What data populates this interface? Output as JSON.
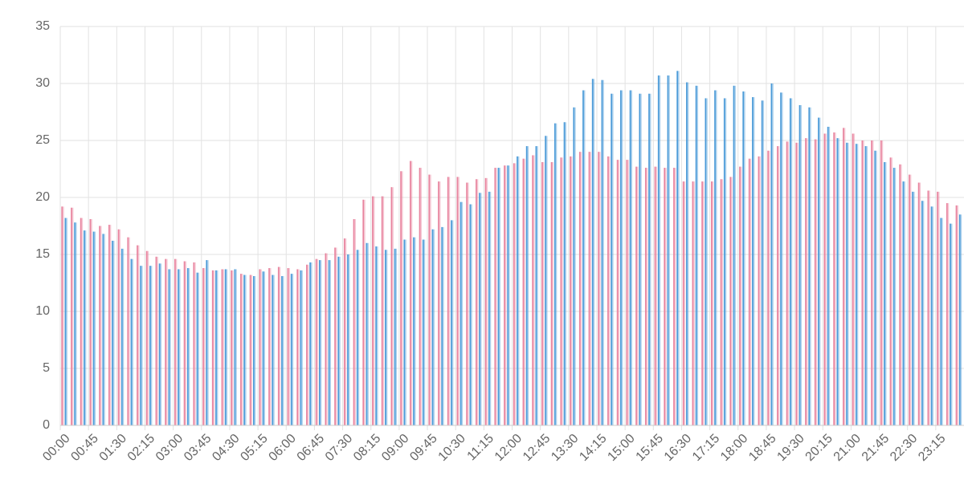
{
  "chart_data": {
    "type": "bar",
    "categories": [
      "00:00",
      null,
      null,
      "00:45",
      null,
      null,
      "01:30",
      null,
      null,
      "02:15",
      null,
      null,
      "03:00",
      null,
      null,
      "03:45",
      null,
      null,
      "04:30",
      null,
      null,
      "05:15",
      null,
      null,
      "06:00",
      null,
      null,
      "06:45",
      null,
      null,
      "07:30",
      null,
      null,
      "08:15",
      null,
      null,
      "09:00",
      null,
      null,
      "09:45",
      null,
      null,
      "10:30",
      null,
      null,
      "11:15",
      null,
      null,
      "12:00",
      null,
      null,
      "12:45",
      null,
      null,
      "13:30",
      null,
      null,
      "14:15",
      null,
      null,
      "15:00",
      null,
      null,
      "15:45",
      null,
      null,
      "16:30",
      null,
      null,
      "17:15",
      null,
      null,
      "18:00",
      null,
      null,
      "18:45",
      null,
      null,
      "19:30",
      null,
      null,
      "20:15",
      null,
      null,
      "21:00",
      null,
      null,
      "21:45",
      null,
      null,
      "22:30",
      null,
      null,
      "23:15",
      null,
      null
    ],
    "series": [
      {
        "color": "#e8839e",
        "values": [
          19.2,
          19.1,
          18.2,
          18.1,
          17.5,
          17.6,
          17.2,
          16.5,
          15.8,
          15.3,
          14.8,
          14.6,
          14.6,
          14.4,
          14.3,
          13.8,
          13.6,
          13.7,
          13.6,
          13.3,
          13.2,
          13.7,
          13.8,
          13.9,
          13.8,
          13.7,
          14.1,
          14.6,
          15.1,
          15.6,
          16.4,
          18.1,
          19.8,
          20.1,
          20.1,
          20.9,
          22.3,
          23.2,
          22.6,
          22.0,
          21.4,
          21.8,
          21.8,
          21.3,
          21.6,
          21.7,
          22.6,
          22.8,
          23.0,
          23.4,
          23.7,
          23.1,
          23.1,
          23.5,
          23.6,
          24.0,
          24.0,
          24.0,
          23.6,
          23.3,
          23.3,
          22.7,
          22.6,
          22.7,
          22.6,
          22.6,
          21.4,
          21.4,
          21.4,
          21.4,
          21.6,
          21.8,
          22.7,
          23.4,
          23.6,
          24.1,
          24.5,
          24.9,
          24.8,
          25.2,
          25.1,
          25.6,
          25.7,
          26.1,
          25.6,
          25.0,
          25.0,
          25.0,
          23.5,
          22.9,
          22.0,
          21.3,
          20.6,
          20.5,
          19.5,
          19.3
        ]
      },
      {
        "color": "#4a9ad8",
        "values": [
          18.2,
          17.8,
          17.1,
          17.0,
          16.8,
          16.2,
          15.5,
          14.6,
          14.0,
          14.0,
          14.2,
          13.7,
          13.7,
          13.8,
          13.4,
          14.5,
          13.6,
          13.7,
          13.7,
          13.2,
          13.1,
          13.5,
          13.2,
          13.1,
          13.3,
          13.6,
          14.3,
          14.5,
          14.5,
          14.8,
          15.0,
          15.4,
          16.0,
          15.7,
          15.4,
          15.5,
          16.3,
          16.5,
          16.3,
          17.2,
          17.4,
          18.0,
          19.6,
          19.4,
          20.4,
          20.5,
          22.6,
          22.8,
          23.6,
          24.5,
          24.5,
          25.4,
          26.5,
          26.6,
          27.9,
          29.4,
          30.4,
          30.3,
          29.1,
          29.4,
          29.4,
          29.1,
          29.1,
          30.7,
          30.7,
          31.1,
          30.1,
          29.8,
          28.7,
          29.4,
          28.7,
          29.8,
          29.3,
          28.8,
          28.5,
          30.0,
          29.2,
          28.7,
          28.1,
          27.9,
          27.0,
          26.2,
          25.2,
          24.8,
          24.7,
          24.5,
          24.1,
          23.1,
          22.6,
          21.4,
          20.5,
          19.7,
          19.2,
          18.2,
          17.7,
          18.5
        ]
      }
    ],
    "ylim": [
      0,
      35
    ],
    "yticks": [
      0,
      5,
      10,
      15,
      20,
      25,
      30,
      35
    ],
    "grid": true
  }
}
